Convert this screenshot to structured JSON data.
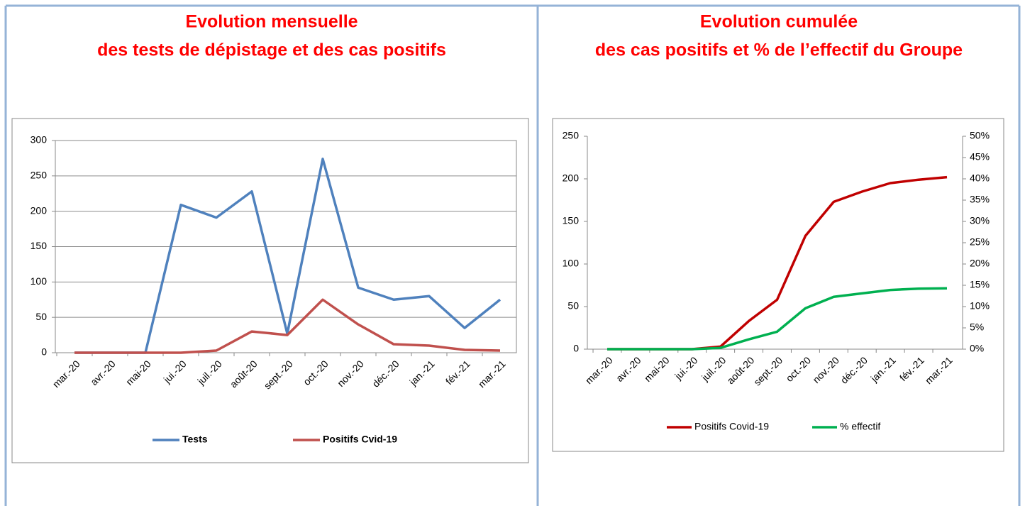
{
  "chart_data": [
    {
      "type": "line",
      "title": "Evolution mensuelle",
      "subtitle": "des tests de dépistage et des cas positifs",
      "categories": [
        "mar.-20",
        "avr.-20",
        "mai-20",
        "jui.-20",
        "juil.-20",
        "août-20",
        "sept.-20",
        "oct.-20",
        "nov.-20",
        "déc.-20",
        "jan.-21",
        "fév.-21",
        "mar.-21"
      ],
      "series": [
        {
          "name": "Tests",
          "color": "#4f81bd",
          "values": [
            0,
            0,
            0,
            209,
            191,
            228,
            27,
            274,
            92,
            75,
            80,
            35,
            75
          ]
        },
        {
          "name": "Positifs Cvid-19",
          "color": "#c0504d",
          "values": [
            0,
            0,
            0,
            0,
            3,
            30,
            25,
            75,
            40,
            12,
            10,
            4,
            3
          ]
        }
      ],
      "ylim": [
        0,
        300
      ],
      "yticks": [
        0,
        50,
        100,
        150,
        200,
        250,
        300
      ],
      "grid": true,
      "legend": "bottom"
    },
    {
      "type": "line",
      "title": "Evolution cumulée",
      "subtitle": "des cas positifs et % de l’effectif du Groupe",
      "categories": [
        "mar.-20",
        "avr.-20",
        "mai-20",
        "jui.-20",
        "juil.-20",
        "août-20",
        "sept.-20",
        "oct.-20",
        "nov.-20",
        "déc.-20",
        "jan.-21",
        "fév.-21",
        "mar.-21"
      ],
      "series": [
        {
          "name": "Positifs Covid-19",
          "color": "#c00000",
          "values": [
            0,
            0,
            0,
            0,
            3,
            33,
            58,
            133,
            173,
            185,
            195,
            199,
            202
          ]
        },
        {
          "name": "% effectif",
          "color": "#00b050",
          "axis": "y2",
          "values": [
            0,
            0,
            0,
            0,
            0.3,
            2.3,
            4.1,
            9.6,
            12.3,
            13.1,
            13.9,
            14.2,
            14.3
          ]
        }
      ],
      "ylim": [
        0,
        250
      ],
      "yticks": [
        0,
        50,
        100,
        150,
        200,
        250
      ],
      "y2lim": [
        0,
        50
      ],
      "y2ticks": [
        {
          "value": 0,
          "label": "0%"
        },
        {
          "value": 5,
          "label": "5%"
        },
        {
          "value": 10,
          "label": "10%"
        },
        {
          "value": 15,
          "label": "15%"
        },
        {
          "value": 20,
          "label": "20%"
        },
        {
          "value": 25,
          "label": "25%"
        },
        {
          "value": 30,
          "label": "30%"
        },
        {
          "value": 35,
          "label": "35%"
        },
        {
          "value": 40,
          "label": "40%"
        },
        {
          "value": 45,
          "label": "45%"
        },
        {
          "value": 50,
          "label": "50%"
        }
      ],
      "grid": false,
      "legend": "bottom"
    }
  ]
}
